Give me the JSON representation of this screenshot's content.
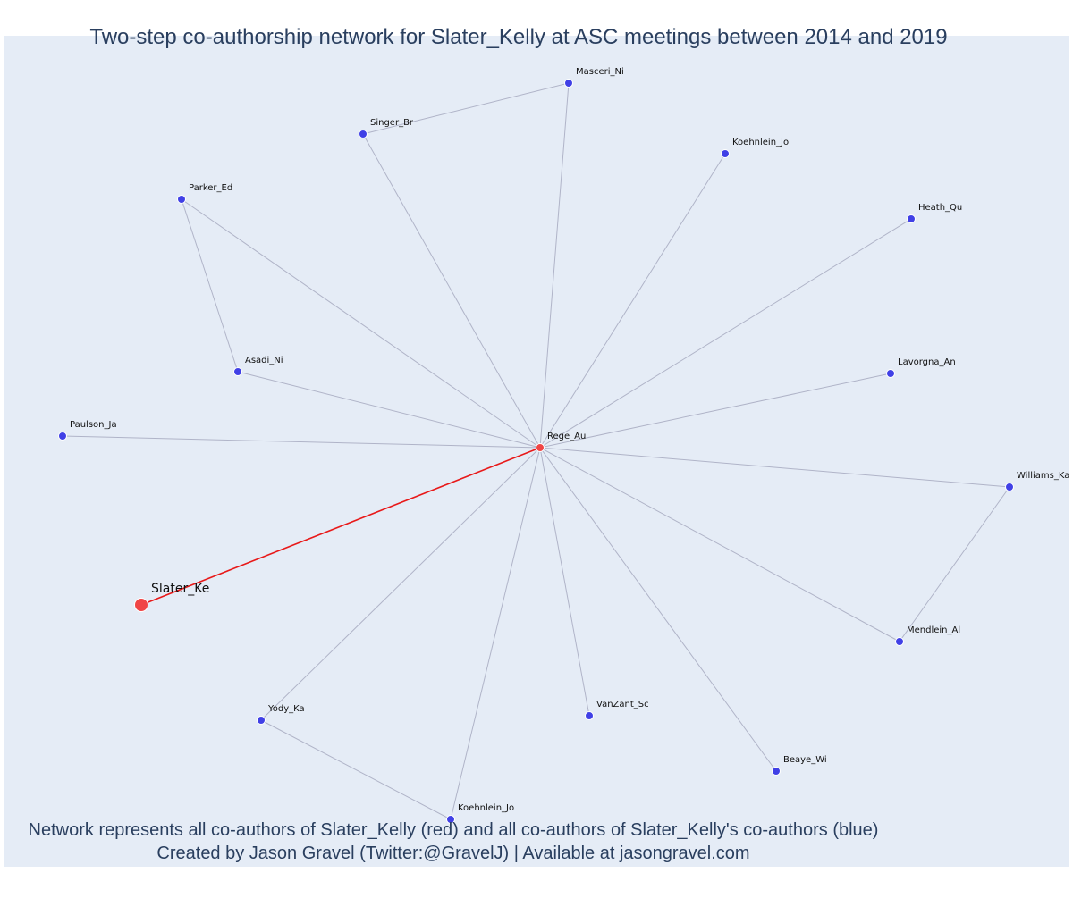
{
  "title": "Two-step co-authorship network for Slater_Kelly at ASC meetings between 2014 and 2019",
  "caption": {
    "line1": "Network represents all co-authors of Slater_Kelly (red) and all co-authors of Slater_Kelly's co-authors (blue)",
    "line2": "Created by Jason Gravel (Twitter:@GravelJ) | Available at jasongravel.com"
  },
  "colors": {
    "background": "#e5ecf6",
    "blue_node": "#4040e6",
    "red_node": "#f04545",
    "edge": "#b0b4c8",
    "focal_edge": "#e81919",
    "text": "#2a3f5f"
  },
  "network": {
    "nodes": [
      {
        "id": "masceri",
        "label": "Masceri_Ni",
        "group": "blue"
      },
      {
        "id": "singer",
        "label": "Singer_Br",
        "group": "blue"
      },
      {
        "id": "koehnlein1",
        "label": "Koehnlein_Jo",
        "group": "blue"
      },
      {
        "id": "parker",
        "label": "Parker_Ed",
        "group": "blue"
      },
      {
        "id": "heath",
        "label": "Heath_Qu",
        "group": "blue"
      },
      {
        "id": "asadi",
        "label": "Asadi_Ni",
        "group": "blue"
      },
      {
        "id": "lavorgna",
        "label": "Lavorgna_An",
        "group": "blue"
      },
      {
        "id": "paulson",
        "label": "Paulson_Ja",
        "group": "blue"
      },
      {
        "id": "rege",
        "label": "Rege_Au",
        "group": "red"
      },
      {
        "id": "williams",
        "label": "Williams_Ka",
        "group": "blue"
      },
      {
        "id": "slater",
        "label": "Slater_Ke",
        "group": "focal"
      },
      {
        "id": "mendlein",
        "label": "Mendlein_Al",
        "group": "blue"
      },
      {
        "id": "yody",
        "label": "Yody_Ka",
        "group": "blue"
      },
      {
        "id": "vanzant",
        "label": "VanZant_Sc",
        "group": "blue"
      },
      {
        "id": "beaye",
        "label": "Beaye_Wi",
        "group": "blue"
      },
      {
        "id": "koehnlein2",
        "label": "Koehnlein_Jo",
        "group": "blue"
      }
    ],
    "edges": [
      {
        "source": "slater",
        "target": "rege",
        "focal": true
      },
      {
        "source": "rege",
        "target": "masceri"
      },
      {
        "source": "rege",
        "target": "singer"
      },
      {
        "source": "rege",
        "target": "koehnlein1"
      },
      {
        "source": "rege",
        "target": "parker"
      },
      {
        "source": "rege",
        "target": "heath"
      },
      {
        "source": "rege",
        "target": "asadi"
      },
      {
        "source": "rege",
        "target": "lavorgna"
      },
      {
        "source": "rege",
        "target": "paulson"
      },
      {
        "source": "rege",
        "target": "williams"
      },
      {
        "source": "rege",
        "target": "mendlein"
      },
      {
        "source": "rege",
        "target": "yody"
      },
      {
        "source": "rege",
        "target": "vanzant"
      },
      {
        "source": "rege",
        "target": "beaye"
      },
      {
        "source": "rege",
        "target": "koehnlein2"
      },
      {
        "source": "masceri",
        "target": "singer"
      },
      {
        "source": "parker",
        "target": "asadi"
      },
      {
        "source": "williams",
        "target": "mendlein"
      },
      {
        "source": "yody",
        "target": "koehnlein2"
      }
    ]
  }
}
